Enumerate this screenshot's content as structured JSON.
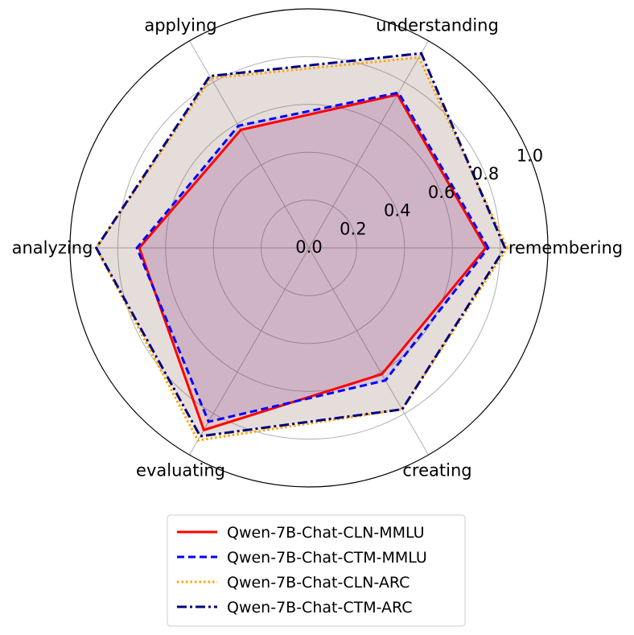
{
  "chart_data": {
    "type": "radar",
    "categories": [
      "remembering",
      "understanding",
      "applying",
      "analyzing",
      "evaluating",
      "creating"
    ],
    "rlim": [
      0,
      1.0
    ],
    "rticks": [
      "0.0",
      "0.2",
      "0.4",
      "0.6",
      "0.8",
      "1.0"
    ],
    "rtick_values": [
      0.0,
      0.2,
      0.4,
      0.6,
      0.8,
      1.0
    ],
    "grid": true,
    "legend_position": "bottom",
    "series": [
      {
        "name": "Qwen-7B-Chat-CLN-MMLU",
        "values": [
          0.74,
          0.74,
          0.57,
          0.71,
          0.88,
          0.61
        ],
        "color": "#ff0000",
        "style": "solid"
      },
      {
        "name": "Qwen-7B-Chat-CTM-MMLU",
        "values": [
          0.75,
          0.75,
          0.59,
          0.72,
          0.84,
          0.64
        ],
        "color": "#0000ff",
        "style": "dashed"
      },
      {
        "name": "Qwen-7B-Chat-CLN-ARC",
        "values": [
          0.83,
          0.92,
          0.82,
          0.89,
          0.93,
          0.78
        ],
        "color": "#ffa500",
        "style": "dotted"
      },
      {
        "name": "Qwen-7B-Chat-CTM-ARC",
        "values": [
          0.82,
          0.94,
          0.83,
          0.89,
          0.91,
          0.78
        ],
        "color": "#000080",
        "style": "dashdot"
      }
    ]
  }
}
